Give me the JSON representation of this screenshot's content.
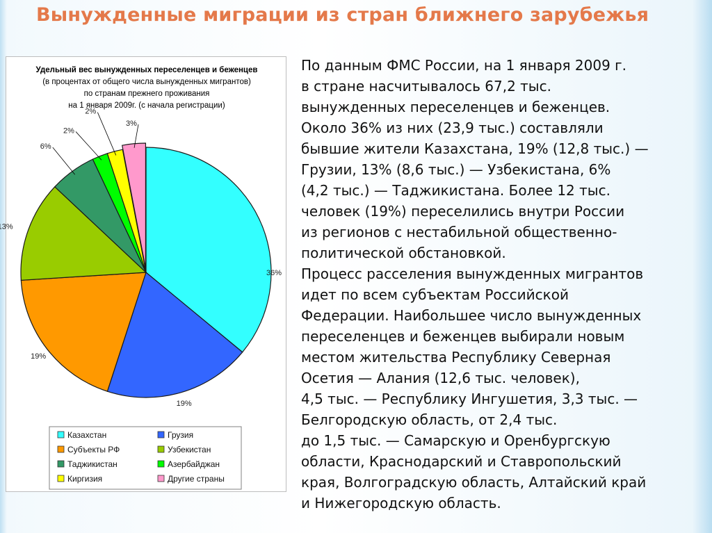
{
  "slide": {
    "title": "Вынужденные миграции из стран ближнего зарубежья",
    "body_lines": [
      "По данным ФМС России, на 1 января 2009 г.",
      "в стране насчитывалось 67,2 тыс.",
      "вынужденных переселенцев и беженцев.",
      "Около 36% из них (23,9 тыс.) составляли",
      "бывшие жители Казахстана, 19% (12,8 тыс.) —",
      "Грузии, 13% (8,6 тыс.) — Узбекистана, 6%",
      "(4,2 тыс.) — Таджикистана. Более 12 тыс.",
      "человек (19%) переселились внутри России",
      "из регионов с нестабильной общественно-",
      "политической обстановкой.",
      "Процесс расселения вынужденных мигрантов",
      "идет по всем субъектам Российской",
      "Федерации. Наибольшее число вынужденных",
      "переселенцев и беженцев выбирали новым",
      "местом жительства Республику Северная",
      "Осетия — Алания (12,6 тыс. человек),",
      "4,5 тыс. — Республику Ингушетия, 3,3 тыс. —",
      "Белгородскую область, от 2,4 тыс.",
      "до 1,5 тыс. — Самарскую и Оренбургскую",
      "области, Краснодарский и Ставропольский",
      "края, Волгоградскую область, Алтайский край",
      "и Нижегородскую область."
    ]
  },
  "chart_data": {
    "type": "pie",
    "title_lines": [
      "Удельный вес вынужденных переселенцев и беженцев",
      "(в процентах от общего числа вынужденных мигрантов)",
      "по странам прежнего проживания",
      "на 1 января 2009г. (с начала регистрации)"
    ],
    "categories": [
      "Казахстан",
      "Грузия",
      "Субъекты РФ",
      "Узбекистан",
      "Таджикистан",
      "Азербайджан",
      "Киргизия",
      "Другие страны"
    ],
    "values": [
      36,
      19,
      19,
      13,
      6,
      2,
      2,
      3
    ],
    "labels": [
      "36%",
      "19%",
      "19%",
      "13%",
      "6%",
      "2%",
      "2%",
      "3%"
    ],
    "colors": [
      "#33ffff",
      "#3366ff",
      "#ff9900",
      "#99cc00",
      "#339966",
      "#00ff00",
      "#ffff00",
      "#ff99cc"
    ],
    "legend_position": "bottom"
  }
}
